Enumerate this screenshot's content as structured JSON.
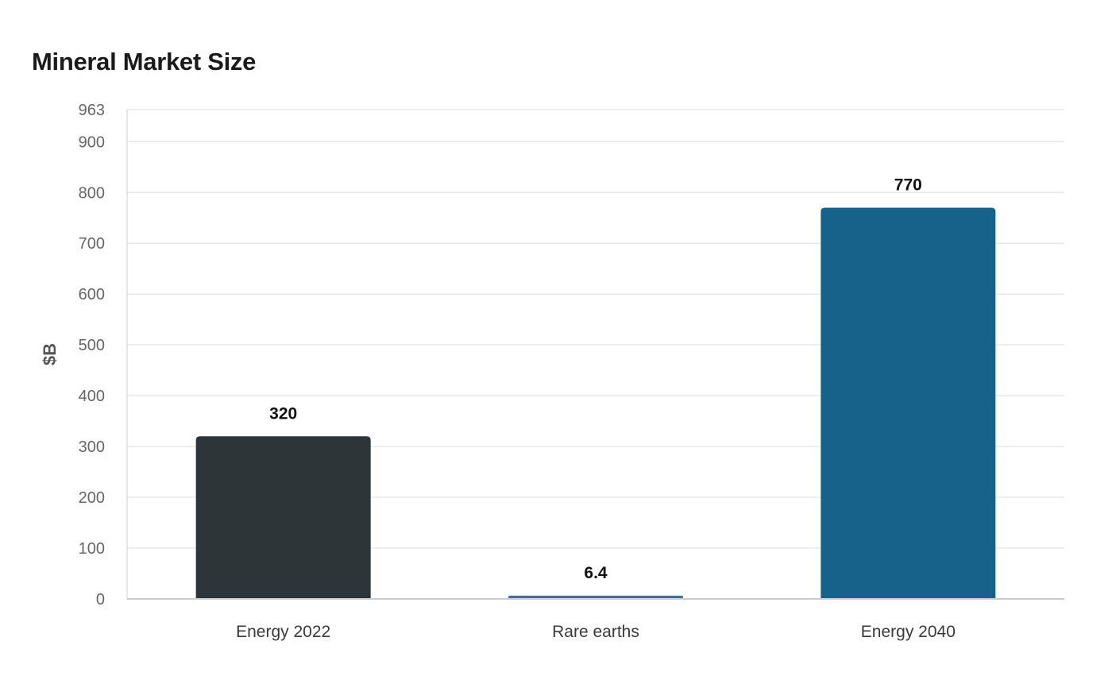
{
  "chart_data": {
    "type": "bar",
    "title": "Mineral Market Size",
    "xlabel": "",
    "ylabel": "$B",
    "categories": [
      "Energy 2022",
      "Rare earths",
      "Energy 2040"
    ],
    "values": [
      320,
      6.4,
      770
    ],
    "value_labels": [
      "320",
      "6.4",
      "770"
    ],
    "bar_colors": [
      "#2d3538",
      "#4a6e9a",
      "#17628a"
    ],
    "ylim": [
      0,
      963
    ],
    "yticks": [
      0,
      100,
      200,
      300,
      400,
      500,
      600,
      700,
      800,
      900,
      963
    ],
    "grid": true,
    "legend": "none"
  }
}
